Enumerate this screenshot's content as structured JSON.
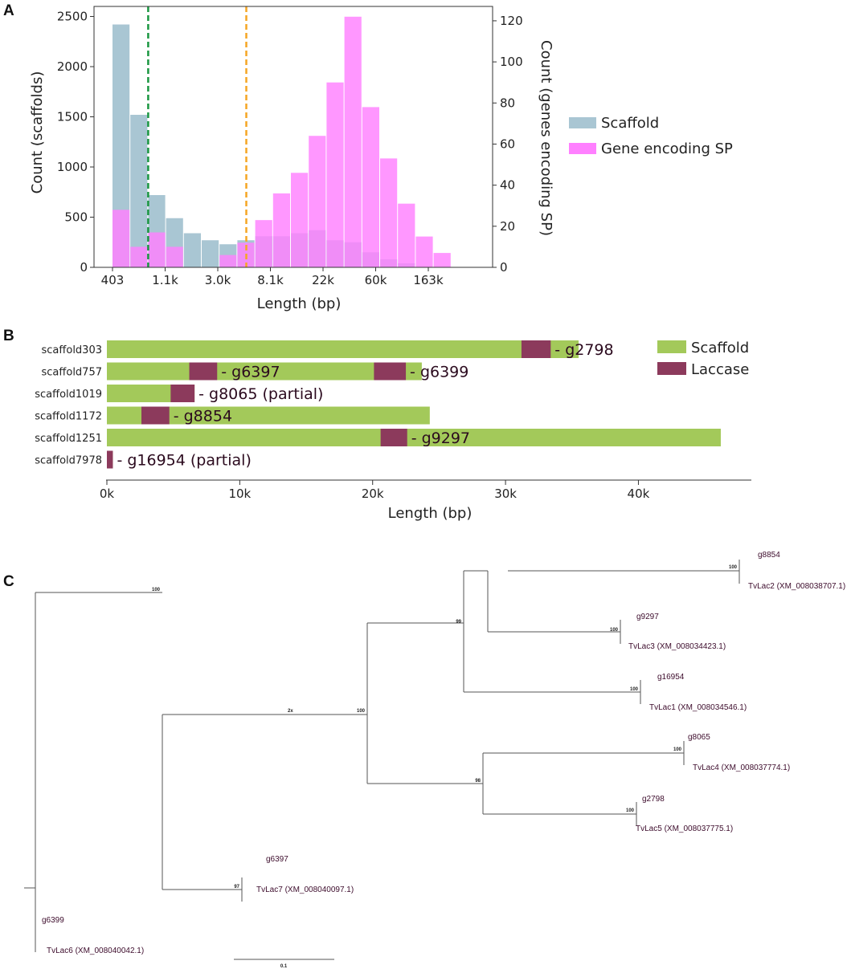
{
  "chart_data": [
    {
      "panel": "A",
      "type": "bar",
      "title": "",
      "xlabel": "Length (bp)",
      "ylabel": "Count (scaffolds)",
      "y2label": "Count (genes encoding SP)",
      "x_ticks": [
        "403",
        "1.1k",
        "3.0k",
        "8.1k",
        "22k",
        "60k",
        "163k"
      ],
      "ylim": [
        0,
        2600
      ],
      "y_ticks": [
        0,
        500,
        1000,
        1500,
        2000,
        2500
      ],
      "y2lim": [
        0,
        127
      ],
      "y2_ticks": [
        0,
        20,
        40,
        60,
        80,
        100,
        120
      ],
      "legend": [
        "Scaffold",
        "Gene encoding SP"
      ],
      "legend_position": "right",
      "threshold_lines": [
        {
          "name": "green-threshold",
          "x_bin": 2.0,
          "color": "#1a9641"
        },
        {
          "name": "orange-threshold",
          "x_bin": 7.5,
          "color": "#f5a623"
        }
      ],
      "series": [
        {
          "name": "Scaffold",
          "axis": "left",
          "color": "#a9c6d3",
          "values": [
            2420,
            1520,
            720,
            490,
            340,
            270,
            230,
            270,
            310,
            310,
            340,
            370,
            270,
            250,
            150,
            80,
            40,
            0,
            0
          ]
        },
        {
          "name": "Gene encoding SP",
          "axis": "right",
          "color": "#ff80ff",
          "values": [
            28,
            10,
            17,
            10,
            0,
            0,
            6,
            12,
            23,
            36,
            46,
            64,
            90,
            122,
            78,
            53,
            31,
            15,
            7
          ]
        }
      ]
    },
    {
      "panel": "B",
      "type": "bar",
      "orientation": "horizontal",
      "xlabel": "Length (bp)",
      "x_ticks": [
        "0k",
        "10k",
        "20k",
        "30k",
        "40k"
      ],
      "xlim": [
        0,
        48500
      ],
      "legend": [
        "Scaffold",
        "Laccase"
      ],
      "legend_position": "top-right",
      "scaffold_color": "#a3c95a",
      "laccase_color": "#8c3a5c",
      "scaffolds": [
        {
          "name": "scaffold303",
          "length": 35500,
          "laccases": [
            {
              "start": 31200,
              "end": 33400,
              "label": "- g2798"
            }
          ]
        },
        {
          "name": "scaffold757",
          "length": 23700,
          "laccases": [
            {
              "start": 6200,
              "end": 8300,
              "label": "- g6397"
            },
            {
              "start": 20100,
              "end": 22500,
              "label": "- g6399"
            }
          ]
        },
        {
          "name": "scaffold1019",
          "length": 6600,
          "laccases": [
            {
              "start": 4800,
              "end": 6600,
              "label": "- g8065 (partial)"
            }
          ]
        },
        {
          "name": "scaffold1172",
          "length": 24300,
          "laccases": [
            {
              "start": 2600,
              "end": 4700,
              "label": "- g8854"
            }
          ]
        },
        {
          "name": "scaffold1251",
          "length": 46200,
          "laccases": [
            {
              "start": 20600,
              "end": 22600,
              "label": "- g9297"
            }
          ]
        },
        {
          "name": "scaffold7978",
          "length": 450,
          "laccases": [
            {
              "start": 0,
              "end": 450,
              "label": "- g16954 (partial)"
            }
          ]
        }
      ]
    },
    {
      "panel": "C",
      "type": "tree",
      "tips": [
        "g8854",
        "TvLac2 (XM_008038707.1)",
        "g9297",
        "TvLac3 (XM_008034423.1)",
        "g16954",
        "TvLac1 (XM_008034546.1)",
        "g8065",
        "TvLac4 (XM_008037774.1)",
        "g2798",
        "TvLac5 (XM_008037775.1)",
        "g6397",
        "TvLac7 (XM_008040097.1)",
        "g6399",
        "TvLac6 (XM_008040042.1)"
      ],
      "bootstrap": [
        "100",
        "100",
        "99",
        "100",
        "100",
        "2x",
        "100",
        "98",
        "100",
        "100",
        "97"
      ],
      "scale_bar": "0.1"
    }
  ]
}
